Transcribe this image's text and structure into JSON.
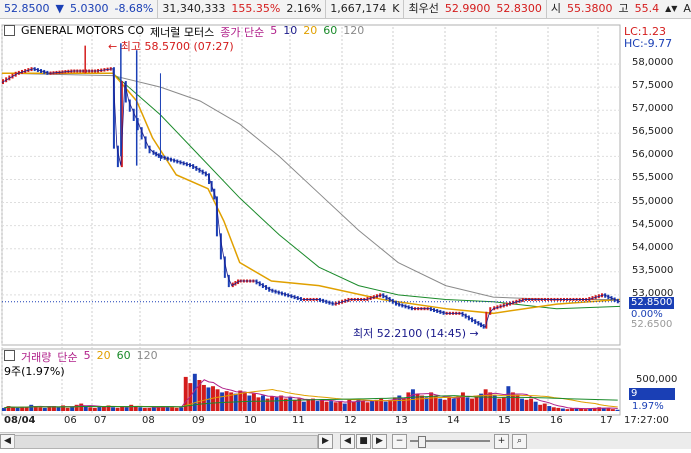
{
  "ticker_bar": {
    "price": "52.8500",
    "direction": "▼",
    "change": "5.0300",
    "change_pct": "-8.68%",
    "volume_value": "31,340,333",
    "volume_ratio": "155.35%",
    "turnover_pct": "2.16%",
    "quote_qty": "1,667,174",
    "quote_unit": "K",
    "best_label": "최우선",
    "best_ask": "52.9900",
    "best_bid": "52.8300",
    "open_label": "시",
    "open_value": "55.3800",
    "high_label": "고",
    "high_value": "55.4",
    "more_arrows": "▲▼",
    "font_button": "A"
  },
  "price_pane": {
    "stock_name": "GENERAL MOTORS CO",
    "stock_name_kr": "제너럴 모터스",
    "ma_label": "종가 단순",
    "ma_periods": [
      "5",
      "10",
      "20",
      "60",
      "120"
    ],
    "ma_colors": [
      "#b0208a",
      "#1b1b8a",
      "#e0a000",
      "#1a8a2a",
      "#8a8a8a"
    ],
    "high_marker": "최고 58.5700 (07:27)",
    "low_marker": "최저 52.2100 (14:45)",
    "lc_label": "LC:1.23",
    "hc_label": "HC:-9.77",
    "current_price_box": "52.8500",
    "current_pct_box": "0.00%",
    "faded_price_box": "52.6500",
    "y_ticks": [
      "58,0000",
      "57,5000",
      "57,0000",
      "56,5000",
      "56,0000",
      "55,5000",
      "55,0000",
      "54,5000",
      "54,0000",
      "53,5000",
      "53,0000"
    ]
  },
  "volume_pane": {
    "title": "거래량",
    "ma_label": "단순",
    "ma_periods": [
      "5",
      "20",
      "60",
      "120"
    ],
    "ma_colors": [
      "#b0208a",
      "#e0a000",
      "#1a8a2a",
      "#8a8a8a"
    ],
    "units": "9주(1.97%)",
    "y_ticks": [
      "500,000"
    ],
    "current_box": "9",
    "current_pct": "1.97%"
  },
  "x_axis": {
    "labels": [
      "08/04",
      "06",
      "07",
      "08",
      "09",
      "10",
      "11",
      "12",
      "13",
      "14",
      "15",
      "16",
      "17"
    ],
    "time": "17:27:00"
  },
  "scroll_controls": {
    "left": "◀",
    "right": "▶",
    "back": "◀",
    "stop": "■",
    "play": "▶",
    "zoom_out": "−",
    "zoom_in": "+",
    "search": "🔍"
  },
  "chart_data": {
    "type": "line",
    "title": "",
    "ylim": [
      52.0,
      58.5
    ],
    "x_range": [
      "08/04 05:00",
      "08/04 17:27"
    ],
    "close_path": [
      [
        0,
        57.6
      ],
      [
        4,
        57.8
      ],
      [
        8,
        57.9
      ],
      [
        12,
        57.8
      ],
      [
        18,
        57.85
      ],
      [
        24,
        57.85
      ],
      [
        28,
        57.9
      ],
      [
        29,
        56.2
      ],
      [
        30,
        55.8
      ],
      [
        31,
        57.6
      ],
      [
        32,
        57.2
      ],
      [
        33,
        57.0
      ],
      [
        34,
        56.8
      ],
      [
        35,
        56.6
      ],
      [
        36,
        56.4
      ],
      [
        37,
        56.2
      ],
      [
        38,
        56.1
      ],
      [
        40,
        56.0
      ],
      [
        44,
        55.9
      ],
      [
        48,
        55.8
      ],
      [
        52,
        55.6
      ],
      [
        54,
        55.1
      ],
      [
        55,
        54.3
      ],
      [
        56,
        53.8
      ],
      [
        57,
        53.4
      ],
      [
        58,
        53.2
      ],
      [
        60,
        53.3
      ],
      [
        64,
        53.3
      ],
      [
        68,
        53.1
      ],
      [
        72,
        53.0
      ],
      [
        76,
        52.9
      ],
      [
        80,
        52.9
      ],
      [
        84,
        52.8
      ],
      [
        88,
        52.9
      ],
      [
        92,
        52.9
      ],
      [
        96,
        53.0
      ],
      [
        100,
        52.8
      ],
      [
        104,
        52.7
      ],
      [
        108,
        52.7
      ],
      [
        112,
        52.6
      ],
      [
        116,
        52.6
      ],
      [
        120,
        52.4
      ],
      [
        122,
        52.3
      ],
      [
        123,
        52.6
      ],
      [
        124,
        52.7
      ],
      [
        128,
        52.8
      ],
      [
        132,
        52.9
      ],
      [
        136,
        52.9
      ],
      [
        140,
        52.9
      ],
      [
        144,
        52.9
      ],
      [
        148,
        52.9
      ],
      [
        152,
        53.0
      ],
      [
        156,
        52.85
      ]
    ],
    "ma20_path": [
      [
        0,
        57.8
      ],
      [
        28,
        57.8
      ],
      [
        34,
        57.2
      ],
      [
        38,
        56.4
      ],
      [
        44,
        55.6
      ],
      [
        52,
        55.3
      ],
      [
        56,
        54.6
      ],
      [
        60,
        53.7
      ],
      [
        68,
        53.3
      ],
      [
        80,
        53.2
      ],
      [
        96,
        52.9
      ],
      [
        112,
        52.7
      ],
      [
        124,
        52.6
      ],
      [
        140,
        52.8
      ],
      [
        156,
        52.9
      ]
    ],
    "ma60_path": [
      [
        0,
        57.8
      ],
      [
        28,
        57.8
      ],
      [
        40,
        56.9
      ],
      [
        50,
        56.0
      ],
      [
        60,
        55.1
      ],
      [
        70,
        54.3
      ],
      [
        80,
        53.6
      ],
      [
        90,
        53.2
      ],
      [
        100,
        53.0
      ],
      [
        112,
        52.9
      ],
      [
        124,
        52.85
      ],
      [
        140,
        52.7
      ],
      [
        156,
        52.75
      ]
    ],
    "ma120_path": [
      [
        0,
        57.8
      ],
      [
        28,
        57.75
      ],
      [
        40,
        57.5
      ],
      [
        50,
        57.2
      ],
      [
        60,
        56.7
      ],
      [
        70,
        56.0
      ],
      [
        80,
        55.2
      ],
      [
        90,
        54.4
      ],
      [
        100,
        53.7
      ],
      [
        112,
        53.2
      ],
      [
        124,
        52.95
      ],
      [
        140,
        52.9
      ],
      [
        156,
        52.9
      ]
    ],
    "volume_bars": [
      0.05,
      0.08,
      0.06,
      0.05,
      0.07,
      0.06,
      0.1,
      0.08,
      0.06,
      0.05,
      0.07,
      0.08,
      0.06,
      0.09,
      0.05,
      0.07,
      0.1,
      0.12,
      0.08,
      0.06,
      0.05,
      0.07,
      0.08,
      0.09,
      0.06,
      0.05,
      0.07,
      0.06,
      0.1,
      0.08,
      0.06,
      0.05,
      0.05,
      0.06,
      0.07,
      0.08,
      0.06,
      0.07,
      0.05,
      0.06,
      0.55,
      0.45,
      0.6,
      0.5,
      0.42,
      0.38,
      0.4,
      0.35,
      0.3,
      0.32,
      0.3,
      0.28,
      0.33,
      0.3,
      0.25,
      0.28,
      0.22,
      0.25,
      0.2,
      0.24,
      0.22,
      0.25,
      0.2,
      0.22,
      0.18,
      0.2,
      0.15,
      0.18,
      0.2,
      0.16,
      0.18,
      0.15,
      0.16,
      0.14,
      0.15,
      0.12,
      0.18,
      0.15,
      0.2,
      0.16,
      0.14,
      0.16,
      0.18,
      0.2,
      0.15,
      0.18,
      0.22,
      0.25,
      0.2,
      0.3,
      0.35,
      0.28,
      0.25,
      0.22,
      0.3,
      0.25,
      0.2,
      0.18,
      0.22,
      0.2,
      0.25,
      0.3,
      0.22,
      0.2,
      0.25,
      0.28,
      0.35,
      0.3,
      0.25,
      0.2,
      0.22,
      0.4,
      0.3,
      0.25,
      0.2,
      0.18,
      0.2,
      0.15,
      0.1,
      0.12,
      0.08,
      0.06,
      0.05,
      0.04,
      0.03,
      0.04,
      0.05,
      0.04,
      0.03,
      0.04,
      0.05,
      0.06,
      0.05,
      0.04,
      0.03,
      0.02
    ]
  }
}
